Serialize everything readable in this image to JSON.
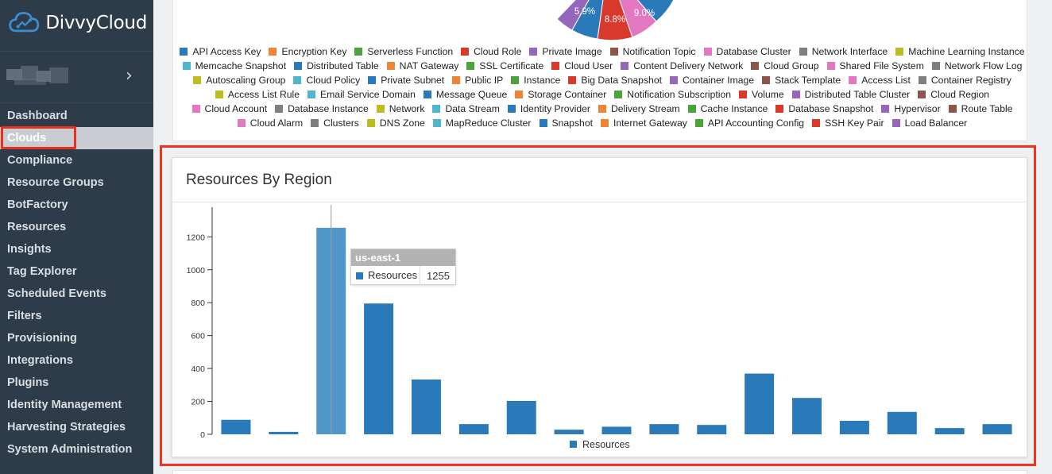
{
  "app": {
    "name": "DivvyCloud"
  },
  "sidebar": {
    "items": [
      {
        "label": "Dashboard"
      },
      {
        "label": "Clouds",
        "active": true
      },
      {
        "label": "Compliance"
      },
      {
        "label": "Resource Groups"
      },
      {
        "label": "BotFactory"
      },
      {
        "label": "Resources"
      },
      {
        "label": "Insights"
      },
      {
        "label": "Tag Explorer"
      },
      {
        "label": "Scheduled Events"
      },
      {
        "label": "Filters"
      },
      {
        "label": "Provisioning"
      },
      {
        "label": "Integrations"
      },
      {
        "label": "Plugins"
      },
      {
        "label": "Identity Management"
      },
      {
        "label": "Harvesting Strategies"
      },
      {
        "label": "System Administration"
      }
    ],
    "chevron_icon": "chevron-right-icon"
  },
  "pie": {
    "slice_labels": [
      "5.9%",
      "8.8%",
      "9.0%"
    ],
    "legend_rows": [
      [
        [
          "API Access Key",
          "#2a7ab9"
        ],
        [
          "Encryption Key",
          "#f08436"
        ],
        [
          "Serverless Function",
          "#4aa43a"
        ],
        [
          "Cloud Role",
          "#d8392b"
        ],
        [
          "Private Image",
          "#9467bd"
        ],
        [
          "Notification Topic",
          "#8c564b"
        ],
        [
          "Database Cluster",
          "#e377c2"
        ],
        [
          "Network Interface",
          "#7f7f7f"
        ],
        [
          "Machine Learning Instance",
          "#bcbd22"
        ]
      ],
      [
        [
          "Memcache Snapshot",
          "#4cb8c8"
        ],
        [
          "Distributed Table",
          "#2a7ab9"
        ],
        [
          "NAT Gateway",
          "#f08436"
        ],
        [
          "SSL Certificate",
          "#4aa43a"
        ],
        [
          "Cloud User",
          "#d8392b"
        ],
        [
          "Content Delivery Network",
          "#9467bd"
        ],
        [
          "Cloud Group",
          "#8c564b"
        ],
        [
          "Shared File System",
          "#e377c2"
        ],
        [
          "Network Flow Log",
          "#7f7f7f"
        ]
      ],
      [
        [
          "Autoscaling Group",
          "#bcbd22"
        ],
        [
          "Cloud Policy",
          "#4cb8c8"
        ],
        [
          "Private Subnet",
          "#2a7ab9"
        ],
        [
          "Public IP",
          "#f08436"
        ],
        [
          "Instance",
          "#4aa43a"
        ],
        [
          "Big Data Snapshot",
          "#d8392b"
        ],
        [
          "Container Image",
          "#9467bd"
        ],
        [
          "Stack Template",
          "#8c564b"
        ],
        [
          "Access List",
          "#e377c2"
        ],
        [
          "Container Registry",
          "#7f7f7f"
        ]
      ],
      [
        [
          "Access List Rule",
          "#bcbd22"
        ],
        [
          "Email Service Domain",
          "#4cb8c8"
        ],
        [
          "Message Queue",
          "#2a7ab9"
        ],
        [
          "Storage Container",
          "#f08436"
        ],
        [
          "Notification Subscription",
          "#4aa43a"
        ],
        [
          "Volume",
          "#d8392b"
        ],
        [
          "Distributed Table Cluster",
          "#9467bd"
        ],
        [
          "Cloud Region",
          "#8c564b"
        ]
      ],
      [
        [
          "Cloud Account",
          "#e377c2"
        ],
        [
          "Database Instance",
          "#7f7f7f"
        ],
        [
          "Network",
          "#bcbd22"
        ],
        [
          "Data Stream",
          "#4cb8c8"
        ],
        [
          "Identity Provider",
          "#2a7ab9"
        ],
        [
          "Delivery Stream",
          "#f08436"
        ],
        [
          "Cache Instance",
          "#4aa43a"
        ],
        [
          "Database Snapshot",
          "#d8392b"
        ],
        [
          "Hypervisor",
          "#9467bd"
        ],
        [
          "Route Table",
          "#8c564b"
        ]
      ],
      [
        [
          "Cloud Alarm",
          "#e377c2"
        ],
        [
          "Clusters",
          "#7f7f7f"
        ],
        [
          "DNS Zone",
          "#bcbd22"
        ],
        [
          "MapReduce Cluster",
          "#4cb8c8"
        ],
        [
          "Snapshot",
          "#2a7ab9"
        ],
        [
          "Internet Gateway",
          "#f08436"
        ],
        [
          "API Accounting Config",
          "#4aa43a"
        ],
        [
          "SSH Key Pair",
          "#d8392b"
        ],
        [
          "Load Balancer",
          "#9467bd"
        ]
      ]
    ]
  },
  "region_card": {
    "title": "Resources By Region"
  },
  "tooltip": {
    "region": "us-east-1",
    "series": "Resources",
    "value": "1255"
  },
  "chart_data": {
    "type": "bar",
    "title": "",
    "xlabel": "",
    "ylabel": "",
    "ylim": [
      0,
      1380
    ],
    "yticks": [
      0,
      200,
      400,
      600,
      800,
      1000,
      1200
    ],
    "legend": "bottom-center",
    "grid": false,
    "color": "#2a7ab9",
    "highlight_color": "#4f97c8",
    "highlight_index": 2,
    "series": [
      {
        "name": "Resources",
        "values": [
          88,
          15,
          1255,
          795,
          333,
          62,
          203,
          28,
          46,
          62,
          57,
          369,
          221,
          82,
          136,
          38,
          62
        ]
      }
    ]
  }
}
